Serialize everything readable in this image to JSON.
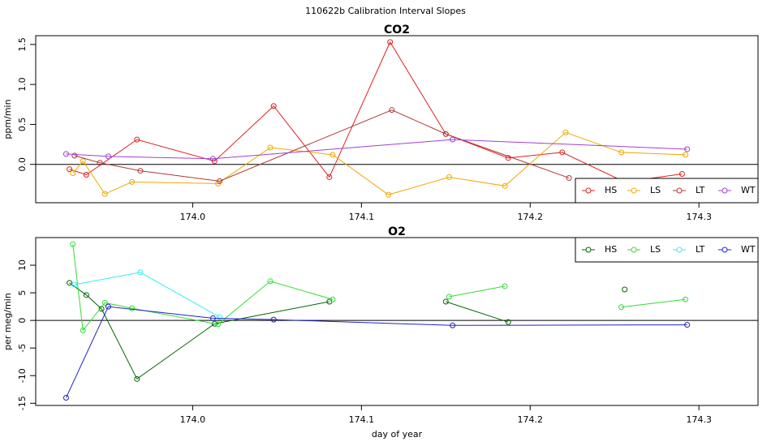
{
  "title": "110622b   Calibration Interval Slopes",
  "chart_data": [
    {
      "type": "line",
      "title": "CO2",
      "y_label": "ppm/min",
      "xlim": [
        173.907,
        174.335
      ],
      "ylim": [
        -0.48,
        1.61
      ],
      "xticks": [
        {
          "value": 174,
          "label": "174.0"
        },
        174.1,
        174.2,
        174.3
      ],
      "yticks": [
        {
          "value": 0,
          "label": "0.0"
        },
        0.5,
        {
          "value": 1,
          "label": "1.0"
        },
        1.5
      ],
      "hline": 0,
      "legend": "bottomright",
      "series": [
        {
          "name": "HS",
          "color": "#e02020",
          "x": [
            173.927,
            173.937,
            173.967,
            174.013,
            174.048,
            174.081,
            174.117,
            174.15,
            174.187,
            174.219,
            174.256,
            174.29
          ],
          "values": [
            -0.06,
            -0.13,
            0.31,
            0.04,
            0.73,
            -0.16,
            1.53,
            0.38,
            0.08,
            0.15,
            -0.22,
            -0.12
          ]
        },
        {
          "name": "LS",
          "color": "#f0a800",
          "x": [
            173.929,
            173.935,
            173.948,
            173.964,
            174.015,
            174.046,
            174.083,
            174.116,
            174.152,
            174.185,
            174.221,
            174.254,
            174.292
          ],
          "values": [
            -0.11,
            0.04,
            -0.37,
            -0.22,
            -0.24,
            0.21,
            0.12,
            -0.38,
            -0.16,
            -0.27,
            0.4,
            0.15,
            0.12
          ]
        },
        {
          "name": "LT",
          "color": "#b03838",
          "x": [
            173.93,
            173.945,
            173.969,
            174.016,
            174.118,
            174.15,
            174.223
          ],
          "values": [
            0.11,
            0.02,
            -0.08,
            -0.21,
            0.68,
            0.38,
            -0.17
          ]
        },
        {
          "name": "WT",
          "color": "#a040d0",
          "x": [
            173.925,
            173.95,
            174.012,
            174.154,
            174.293
          ],
          "values": [
            0.13,
            0.1,
            0.07,
            0.31,
            0.19
          ]
        }
      ]
    },
    {
      "type": "line",
      "title": "O2",
      "y_label": "per meg/min",
      "x_label": "day of year",
      "xlim": [
        173.907,
        174.335
      ],
      "ylim": [
        -15.4,
        15
      ],
      "xticks": [
        {
          "value": 174,
          "label": "174.0"
        },
        174.1,
        174.2,
        174.3
      ],
      "yticks": [
        -15,
        -10,
        -5,
        0,
        5,
        10
      ],
      "hline": 0,
      "legend": "topright",
      "series": [
        {
          "name": "HS",
          "color": "#006400",
          "x": [
            173.927,
            173.937,
            173.946,
            173.967,
            174.013,
            174.081,
            174.115,
            174.15,
            174.187,
            174.22,
            174.256
          ],
          "values": [
            6.8,
            4.6,
            2.1,
            -10.6,
            -0.6,
            3.4,
            null,
            3.4,
            -0.3,
            null,
            5.6
          ]
        },
        {
          "name": "LS",
          "color": "#33dd33",
          "x": [
            173.929,
            173.935,
            173.948,
            173.964,
            174.015,
            174.046,
            174.083,
            174.118,
            174.152,
            174.185,
            174.22,
            174.254,
            174.292
          ],
          "values": [
            13.8,
            -1.8,
            3.2,
            2.2,
            -0.7,
            7.1,
            3.8,
            null,
            4.3,
            6.2,
            null,
            2.4,
            3.8
          ]
        },
        {
          "name": "LT",
          "color": "#33eeee",
          "x": [
            173.93,
            173.969,
            174.016
          ],
          "values": [
            6.5,
            8.7,
            0.6
          ]
        },
        {
          "name": "WT",
          "color": "#2020cc",
          "x": [
            173.925,
            173.95,
            174.012,
            174.048,
            174.154,
            174.293
          ],
          "values": [
            -14.0,
            2.5,
            0.4,
            0.15,
            -0.9,
            -0.8
          ]
        }
      ]
    }
  ]
}
